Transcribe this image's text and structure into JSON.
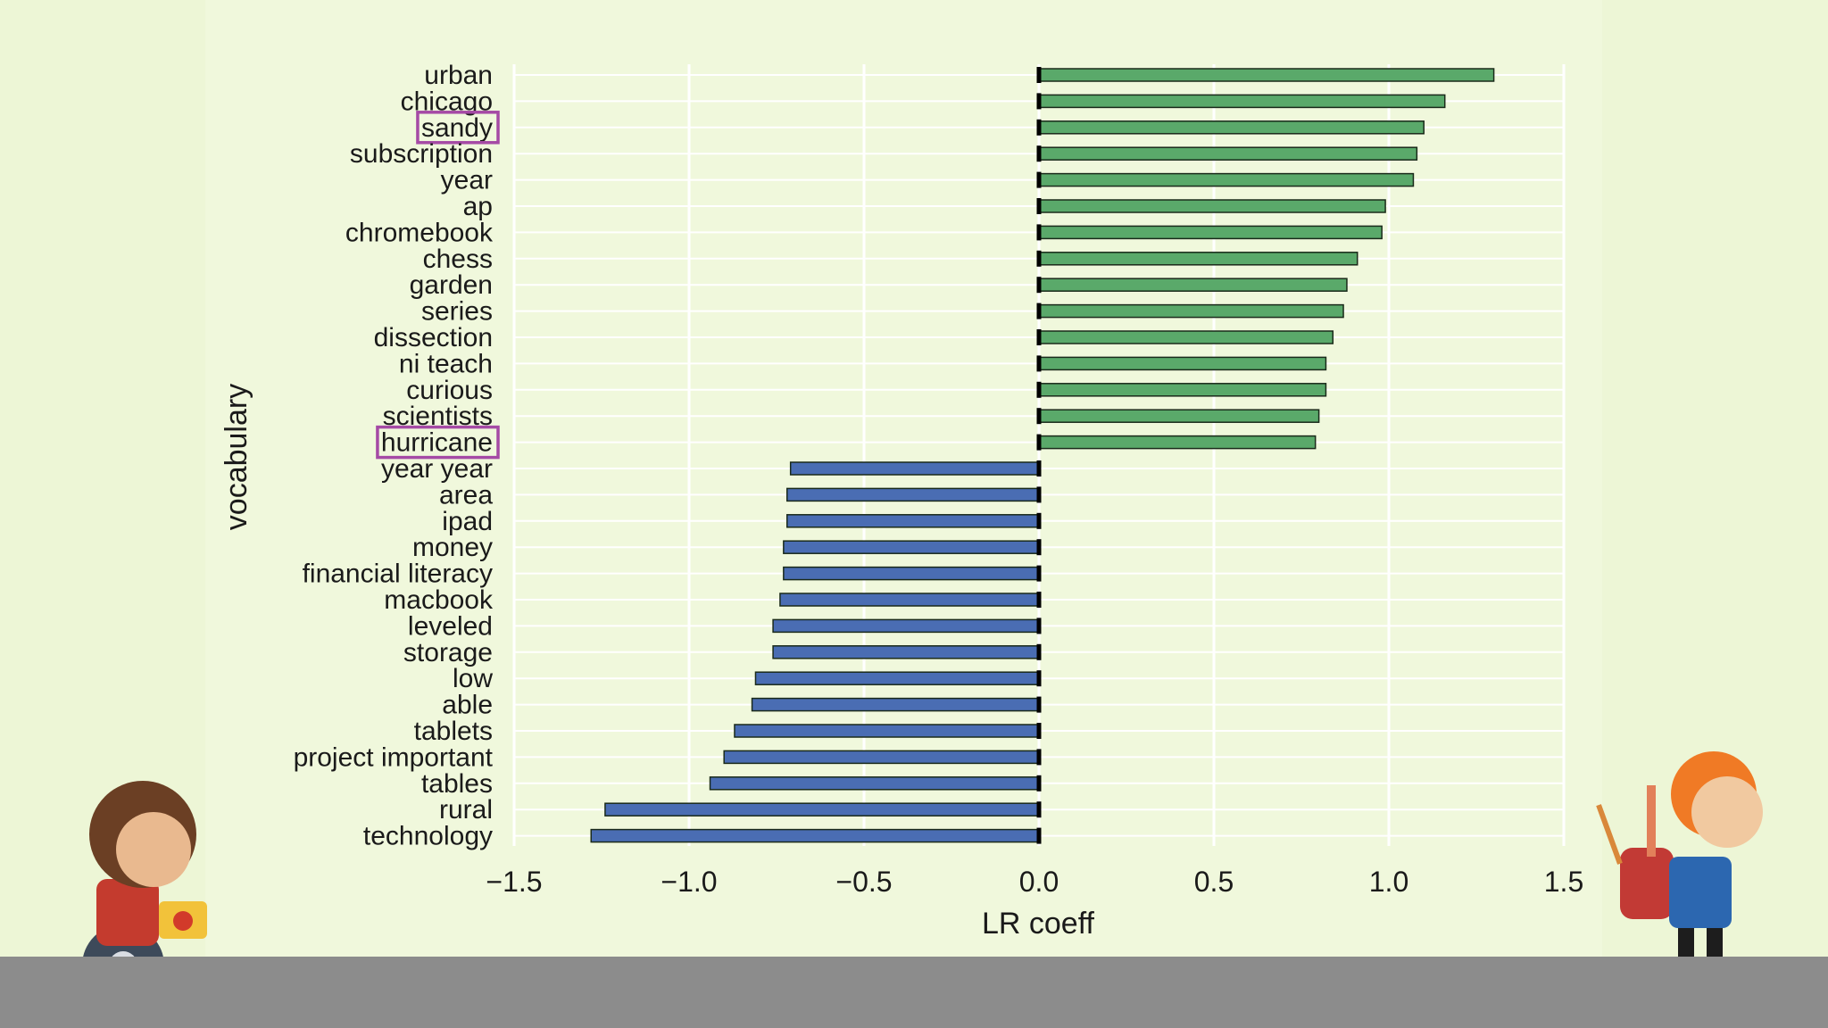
{
  "colors": {
    "background": "#edf6d6",
    "positive_bar": "#5aa96a",
    "negative_bar": "#4a6db3",
    "highlight_box": "#a54aa5",
    "gridline": "#ffffff",
    "floor": "#8c8c8c"
  },
  "chart_data": {
    "type": "bar",
    "orientation": "horizontal",
    "xlabel": "LR coeff",
    "ylabel": "vocabulary",
    "xlim": [
      -1.5,
      1.5
    ],
    "xticks": [
      -1.5,
      -1.0,
      -0.5,
      0.0,
      0.5,
      1.0,
      1.5
    ],
    "xtick_labels": [
      "−1.5",
      "−1.0",
      "−0.5",
      "0.0",
      "0.5",
      "1.0",
      "1.5"
    ],
    "grid": true,
    "categories": [
      "urban",
      "chicago",
      "sandy",
      "subscription",
      "year",
      "ap",
      "chromebook",
      "chess",
      "garden",
      "series",
      "dissection",
      "ni teach",
      "curious",
      "scientists",
      "hurricane",
      "year year",
      "area",
      "ipad",
      "money",
      "financial literacy",
      "macbook",
      "leveled",
      "storage",
      "low",
      "able",
      "tablets",
      "project important",
      "tables",
      "rural",
      "technology"
    ],
    "values": [
      1.3,
      1.16,
      1.1,
      1.08,
      1.07,
      0.99,
      0.98,
      0.91,
      0.88,
      0.87,
      0.84,
      0.82,
      0.82,
      0.8,
      0.79,
      -0.71,
      -0.72,
      -0.72,
      -0.73,
      -0.73,
      -0.74,
      -0.76,
      -0.76,
      -0.81,
      -0.82,
      -0.87,
      -0.9,
      -0.94,
      -1.24,
      -1.28
    ],
    "highlighted": [
      "sandy",
      "hurricane"
    ]
  }
}
